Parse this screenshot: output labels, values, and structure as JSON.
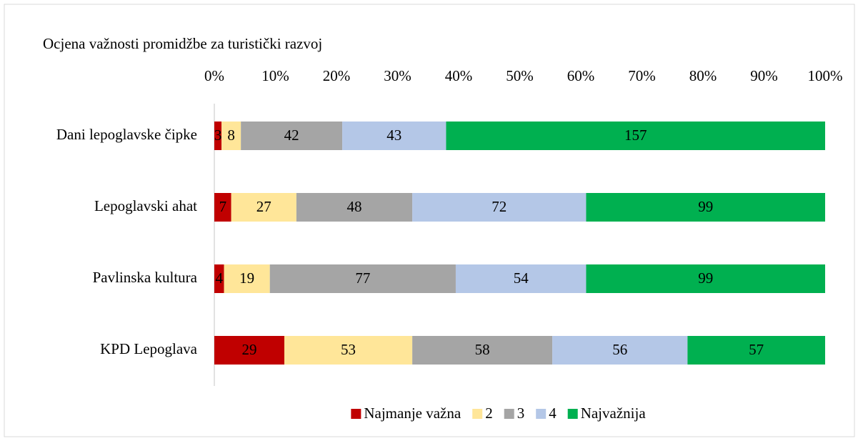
{
  "chart_data": {
    "type": "stacked_bar_100",
    "orientation": "horizontal",
    "title": "Ocjena važnosti promidžbe za turistički razvoj",
    "categories": [
      "Dani lepoglavske čipke",
      "Lepoglavski ahat",
      "Pavlinska kultura",
      "KPD Lepoglava"
    ],
    "series": [
      {
        "name": "Najmanje važna",
        "color": "#c00000",
        "values": [
          3,
          7,
          4,
          29
        ]
      },
      {
        "name": "2",
        "color": "#ffe699",
        "values": [
          8,
          27,
          19,
          53
        ]
      },
      {
        "name": "3",
        "color": "#a5a5a5",
        "values": [
          42,
          48,
          77,
          58
        ]
      },
      {
        "name": "4",
        "color": "#b4c7e7",
        "values": [
          43,
          72,
          54,
          56
        ]
      },
      {
        "name": "Najvažnija",
        "color": "#00b050",
        "values": [
          157,
          99,
          99,
          57
        ]
      }
    ],
    "xlim": [
      0,
      100
    ],
    "xticks": [
      {
        "value": 0,
        "label": "0%"
      },
      {
        "value": 10,
        "label": "10%"
      },
      {
        "value": 20,
        "label": "20%"
      },
      {
        "value": 30,
        "label": "30%"
      },
      {
        "value": 40,
        "label": "40%"
      },
      {
        "value": 50,
        "label": "50%"
      },
      {
        "value": 60,
        "label": "60%"
      },
      {
        "value": 70,
        "label": "70%"
      },
      {
        "value": 80,
        "label": "80%"
      },
      {
        "value": 90,
        "label": "90%"
      },
      {
        "value": 100,
        "label": "100%"
      }
    ],
    "legend": "bottom"
  }
}
